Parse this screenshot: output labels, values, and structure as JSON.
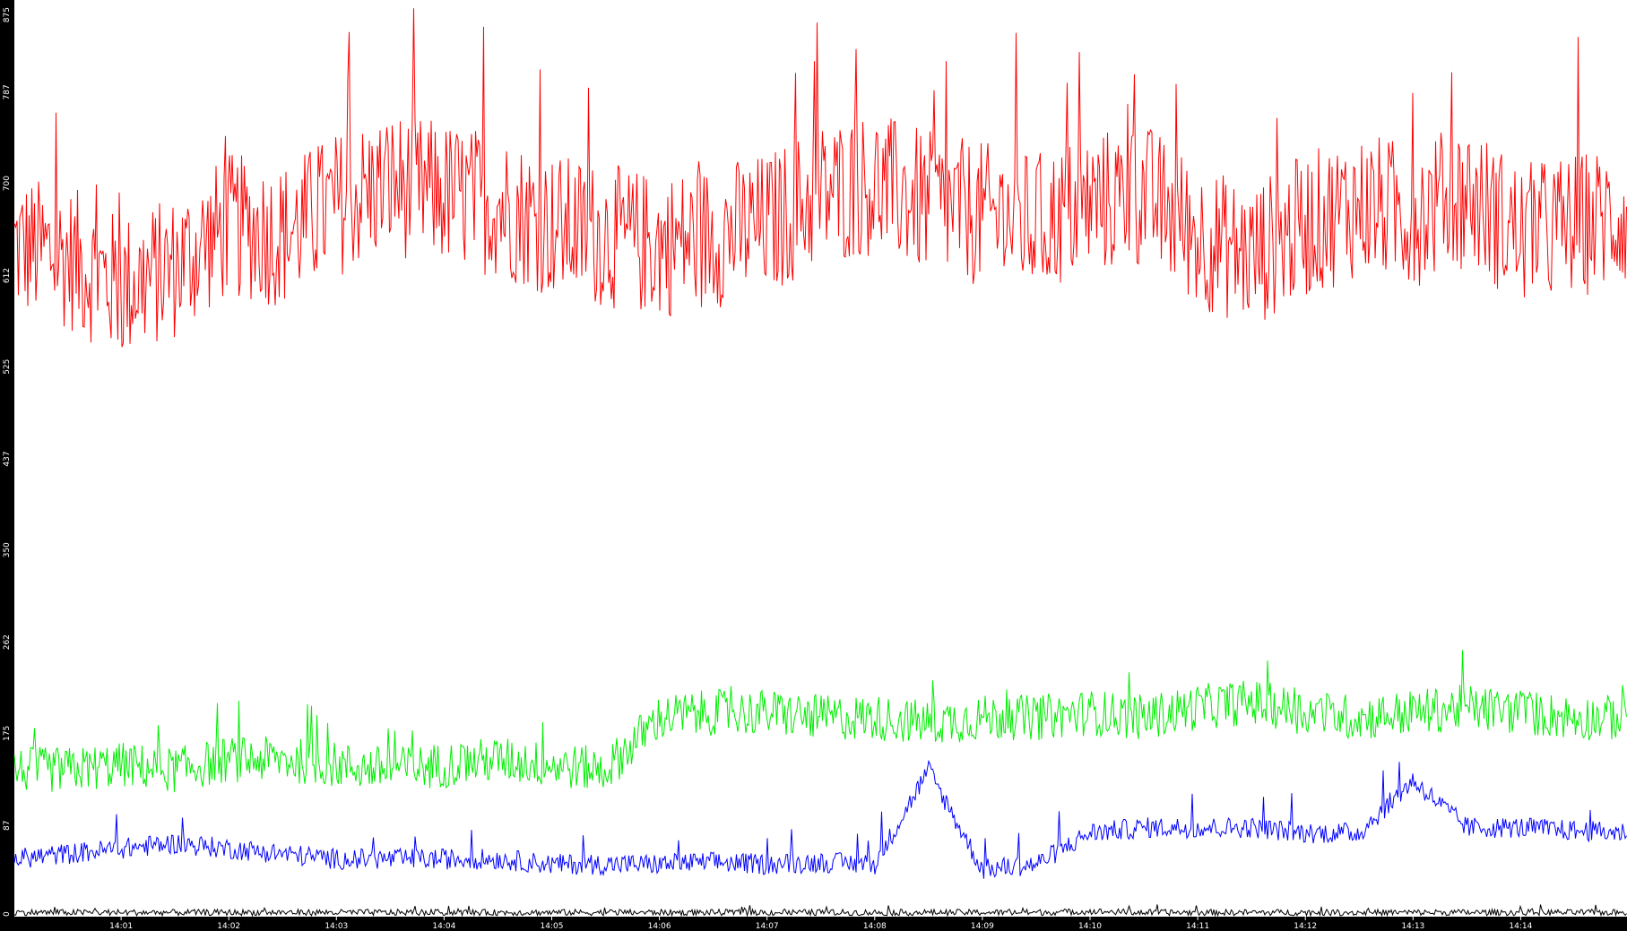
{
  "chart_data": {
    "type": "line",
    "title": "",
    "xlabel": "",
    "ylabel": "",
    "ylim": [
      0,
      875
    ],
    "xlim": [
      "14:00",
      "14:15"
    ],
    "grid": false,
    "y_ticks": [
      "0",
      "87",
      "175",
      "262",
      "350",
      "437",
      "525",
      "612",
      "700",
      "787",
      "875"
    ],
    "x_ticks": [
      "14:01",
      "14:02",
      "14:03",
      "14:04",
      "14:05",
      "14:06",
      "14:07",
      "14:08",
      "14:09",
      "14:10",
      "14:11",
      "14:12",
      "14:13",
      "14:14"
    ],
    "x_sample_times": [
      "14:00:00",
      "14:00:30",
      "14:01:00",
      "14:01:30",
      "14:02:00",
      "14:02:30",
      "14:03:00",
      "14:03:30",
      "14:04:00",
      "14:04:30",
      "14:05:00",
      "14:05:30",
      "14:06:00",
      "14:06:30",
      "14:07:00",
      "14:07:30",
      "14:08:00",
      "14:08:30",
      "14:09:00",
      "14:09:30",
      "14:10:00",
      "14:10:30",
      "14:11:00",
      "14:11:30",
      "14:12:00",
      "14:12:30",
      "14:13:00",
      "14:13:30",
      "14:14:00",
      "14:14:30",
      "14:15:00"
    ],
    "series": [
      {
        "color": "#ff0000",
        "values": [
          640,
          630,
          600,
          620,
          660,
          650,
          680,
          700,
          690,
          680,
          660,
          650,
          640,
          650,
          660,
          690,
          700,
          680,
          670,
          660,
          680,
          690,
          650,
          630,
          660,
          680,
          670,
          690,
          650,
          660,
          670
        ]
      },
      {
        "color": "#00ee00",
        "values": [
          140,
          140,
          145,
          140,
          150,
          150,
          145,
          140,
          145,
          150,
          145,
          140,
          190,
          195,
          195,
          190,
          190,
          185,
          190,
          190,
          195,
          190,
          200,
          205,
          195,
          190,
          195,
          200,
          195,
          190,
          190
        ]
      },
      {
        "color": "#0000ff",
        "values": [
          55,
          60,
          65,
          70,
          65,
          60,
          55,
          55,
          55,
          55,
          50,
          50,
          50,
          52,
          50,
          52,
          50,
          140,
          45,
          50,
          80,
          85,
          85,
          85,
          80,
          80,
          130,
          85,
          85,
          82,
          80
        ]
      },
      {
        "color": "#000000",
        "values": [
          4,
          4,
          4,
          4,
          4,
          4,
          4,
          4,
          4,
          4,
          4,
          4,
          4,
          4,
          4,
          4,
          4,
          4,
          4,
          4,
          5,
          4,
          4,
          4,
          4,
          4,
          4,
          4,
          4,
          4,
          4
        ]
      }
    ],
    "background": "#ffffff",
    "axis_background": "#000000"
  }
}
